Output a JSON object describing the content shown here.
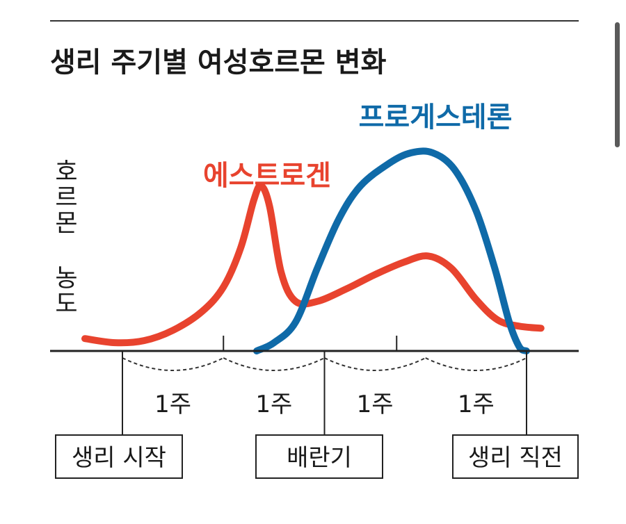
{
  "chart_data": {
    "type": "line",
    "title": "생리 주기별 여성호르몬 변화",
    "ylabel": "호르몬 농도",
    "ylim": [
      0,
      100
    ],
    "xlim": [
      -4,
      28
    ],
    "x_units": "days",
    "series": [
      {
        "name": "에스트로겐",
        "color": "#e8432e",
        "points": [
          [
            -2.6,
            6
          ],
          [
            -0.5,
            4
          ],
          [
            1.5,
            5
          ],
          [
            3.5,
            10
          ],
          [
            5.5,
            19
          ],
          [
            7,
            31
          ],
          [
            8.2,
            50
          ],
          [
            9.1,
            73
          ],
          [
            9.6,
            80
          ],
          [
            10.2,
            70
          ],
          [
            11,
            38
          ],
          [
            12,
            24
          ],
          [
            13.5,
            24
          ],
          [
            15.5,
            30
          ],
          [
            17.5,
            37
          ],
          [
            19.5,
            43
          ],
          [
            21.2,
            46
          ],
          [
            22.8,
            40
          ],
          [
            24.5,
            25
          ],
          [
            26,
            15
          ],
          [
            27.5,
            12
          ],
          [
            29,
            11
          ]
        ]
      },
      {
        "name": "프로게스테론",
        "color": "#0f6aa8",
        "points": [
          [
            9.3,
            0
          ],
          [
            10.5,
            4
          ],
          [
            12,
            14
          ],
          [
            13.5,
            40
          ],
          [
            15,
            64
          ],
          [
            16.5,
            80
          ],
          [
            18.5,
            91
          ],
          [
            20,
            96
          ],
          [
            21.5,
            96
          ],
          [
            23,
            88
          ],
          [
            24.5,
            68
          ],
          [
            25.8,
            40
          ],
          [
            26.8,
            14
          ],
          [
            27.5,
            2
          ],
          [
            28,
            0
          ]
        ]
      }
    ],
    "x_ticks": [
      7,
      19
    ],
    "week_bracket_bounds": [
      0,
      7,
      14,
      21,
      28
    ],
    "week_labels": [
      "1주",
      "1주",
      "1주",
      "1주"
    ],
    "phase_markers": [
      {
        "x": 0,
        "label": "생리 시작"
      },
      {
        "x": 14,
        "label": "배란기"
      },
      {
        "x": 28,
        "label": "생리 직전"
      }
    ]
  }
}
